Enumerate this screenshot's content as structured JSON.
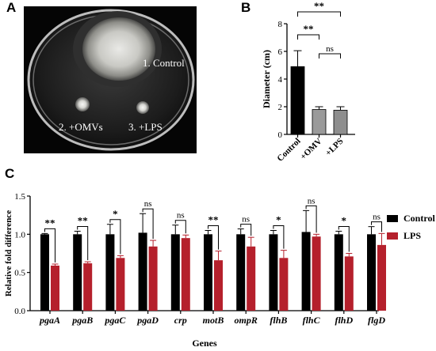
{
  "panels": {
    "a": "A",
    "b": "B",
    "c": "C"
  },
  "photo": {
    "labels": [
      "1. Control",
      "2. +OMVs",
      "3. +LPS"
    ]
  },
  "colors": {
    "control": "#000000",
    "lps": "#b5202c",
    "omv_b": "#9a9a9a",
    "lps_b": "#8e8e8e"
  },
  "chart_data": [
    {
      "type": "bar",
      "ylabel": "Diameter (cm)",
      "ylim": [
        0,
        8
      ],
      "yticks": [
        0,
        2,
        4,
        6,
        8
      ],
      "categories": [
        "Control",
        "+OMV",
        "+LPS"
      ],
      "values": [
        4.9,
        1.8,
        1.75
      ],
      "errors": [
        1.15,
        0.2,
        0.25
      ],
      "significance": [
        {
          "from": 0,
          "to": 1,
          "label": "**"
        },
        {
          "from": 1,
          "to": 2,
          "label": "ns"
        },
        {
          "from": 0,
          "to": 2,
          "label": "**"
        }
      ]
    },
    {
      "type": "bar",
      "xlabel": "Genes",
      "ylabel": "Relative fold difference",
      "ylim": [
        0,
        1.5
      ],
      "yticks": [
        "0.0",
        "0.5",
        "1.0",
        "1.5"
      ],
      "categories": [
        "pgaA",
        "pgaB",
        "pgaC",
        "pgaD",
        "crp",
        "motB",
        "ompR",
        "flhB",
        "flhC",
        "flhD",
        "flgD"
      ],
      "series": [
        {
          "name": "Control",
          "values": [
            1.0,
            1.0,
            1.0,
            1.02,
            1.0,
            1.0,
            1.0,
            1.0,
            1.03,
            1.0,
            1.0
          ],
          "errors": [
            0.01,
            0.04,
            0.13,
            0.25,
            0.12,
            0.05,
            0.07,
            0.05,
            0.28,
            0.04,
            0.1
          ]
        },
        {
          "name": "LPS",
          "values": [
            0.59,
            0.62,
            0.69,
            0.84,
            0.95,
            0.66,
            0.84,
            0.69,
            0.97,
            0.71,
            0.86
          ],
          "errors": [
            0.02,
            0.02,
            0.03,
            0.08,
            0.04,
            0.12,
            0.12,
            0.1,
            0.03,
            0.04,
            0.15
          ]
        }
      ],
      "significance": [
        "**",
        "**",
        "*",
        "ns",
        "ns",
        "**",
        "ns",
        "*",
        "ns",
        "*",
        "ns"
      ],
      "legend_position": "right"
    }
  ]
}
